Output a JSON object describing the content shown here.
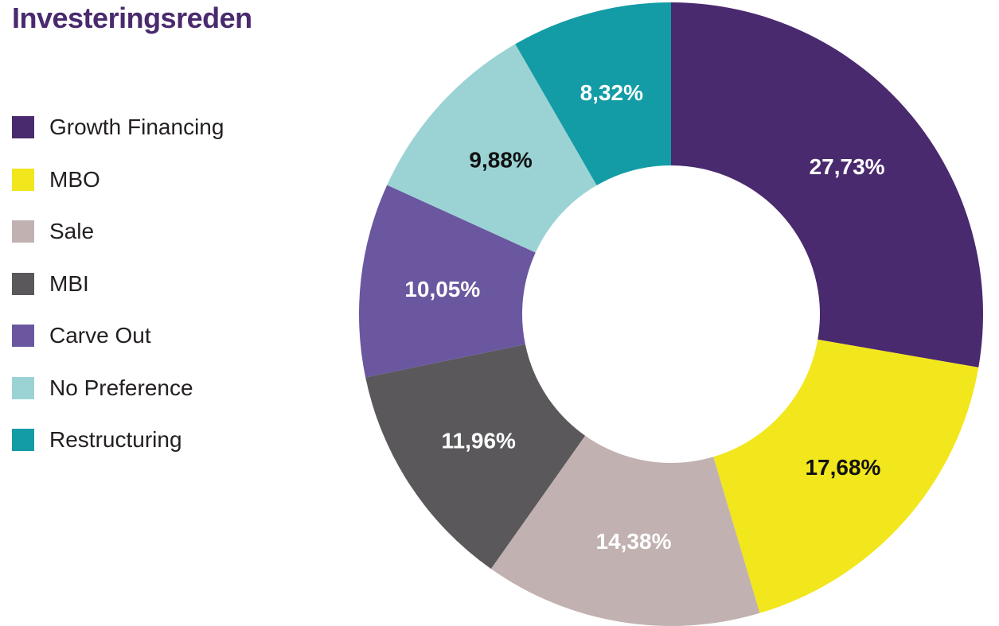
{
  "chart_data": {
    "type": "pie",
    "variant": "donut",
    "title": "Investeringsreden",
    "legend_position": "left",
    "categories": [
      "Growth Financing",
      "MBO",
      "Sale",
      "MBI",
      "Carve Out",
      "No Preference",
      "Restructuring"
    ],
    "values": [
      27.73,
      17.68,
      14.38,
      11.96,
      10.05,
      9.88,
      8.32
    ],
    "data_labels": [
      "27,73%",
      "17,68%",
      "14,38%",
      "11,96%",
      "10,05%",
      "9,88%",
      "8,32%"
    ],
    "colors": [
      "#4a2a6e",
      "#f2e61c",
      "#c2b1b1",
      "#5a585b",
      "#6a57a0",
      "#9bd3d5",
      "#139ca6"
    ],
    "label_colors": [
      "#ffffff",
      "#111111",
      "#ffffff",
      "#ffffff",
      "#ffffff",
      "#111111",
      "#ffffff"
    ]
  }
}
